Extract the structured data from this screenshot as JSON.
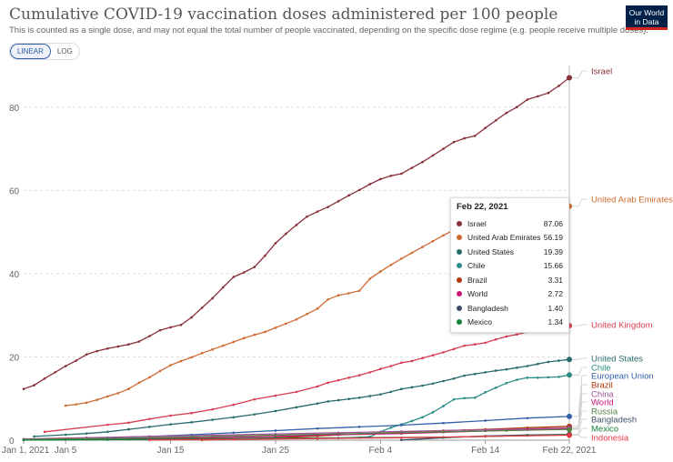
{
  "header": {
    "title": "Cumulative COVID-19 vaccination doses administered per 100 people",
    "subtitle": "This is counted as a single dose, and may not equal the total number of people vaccinated, depending on the specific dose regime (e.g. people receive multiple doses).",
    "logo_line1": "Our World",
    "logo_line2": "in Data"
  },
  "toggle": {
    "linear_label": "LINEAR",
    "log_label": "LOG",
    "active": "linear"
  },
  "tooltip": {
    "date": "Feb 22, 2021",
    "rows": [
      {
        "name": "Israel",
        "value": "87.06",
        "color": "#883039"
      },
      {
        "name": "United Arab Emirates",
        "value": "56.19",
        "color": "#cf6a31"
      },
      {
        "name": "United States",
        "value": "19.39",
        "color": "#286b6b"
      },
      {
        "name": "Chile",
        "value": "15.66",
        "color": "#2a8c85"
      },
      {
        "name": "Brazil",
        "value": "3.31",
        "color": "#b13507"
      },
      {
        "name": "World",
        "value": "2.72",
        "color": "#c9167a"
      },
      {
        "name": "Bangladesh",
        "value": "1.40",
        "color": "#3c4e66"
      },
      {
        "name": "Mexico",
        "value": "1.34",
        "color": "#18803c"
      }
    ]
  },
  "colors": {
    "Israel": "#883039",
    "United Arab Emirates": "#cf6a31",
    "United Kingdom": "#d73c50",
    "United States": "#286b6b",
    "Chile": "#2a8c85",
    "European Union": "#3360a9",
    "Brazil": "#b13507",
    "China": "#a2559c",
    "World": "#c9167a",
    "Russia": "#578145",
    "Bangladesh": "#3c4e66",
    "Mexico": "#18803c",
    "Indonesia": "#e63946"
  },
  "chart_data": {
    "type": "line",
    "xlabel": "",
    "ylabel": "",
    "ylim": [
      0,
      90
    ],
    "y_ticks": [
      0,
      20,
      40,
      60,
      80
    ],
    "x_ticks": [
      {
        "day": 0,
        "label": "Jan 1, 2021"
      },
      {
        "day": 4,
        "label": "Jan 5"
      },
      {
        "day": 14,
        "label": "Jan 15"
      },
      {
        "day": 24,
        "label": "Jan 25"
      },
      {
        "day": 34,
        "label": "Feb 4"
      },
      {
        "day": 44,
        "label": "Feb 14"
      },
      {
        "day": 52,
        "label": "Feb 22, 2021"
      }
    ],
    "x_domain": [
      0,
      52
    ],
    "grid": "horizontal",
    "legend": "right",
    "series": [
      {
        "name": "Israel",
        "label_value": 87.06,
        "points": [
          [
            0,
            12.3
          ],
          [
            1,
            13.2
          ],
          [
            2,
            14.8
          ],
          [
            3,
            16.3
          ],
          [
            4,
            17.8
          ],
          [
            5,
            19.1
          ],
          [
            6,
            20.6
          ],
          [
            7,
            21.4
          ],
          [
            8,
            22.0
          ],
          [
            9,
            22.5
          ],
          [
            10,
            23.0
          ],
          [
            11,
            23.7
          ],
          [
            12,
            25.0
          ],
          [
            13,
            26.4
          ],
          [
            14,
            27.1
          ],
          [
            15,
            27.7
          ],
          [
            16,
            29.5
          ],
          [
            17,
            31.8
          ],
          [
            18,
            34.1
          ],
          [
            19,
            36.7
          ],
          [
            20,
            39.2
          ],
          [
            21,
            40.3
          ],
          [
            22,
            41.6
          ],
          [
            23,
            44.3
          ],
          [
            24,
            47.3
          ],
          [
            25,
            49.6
          ],
          [
            26,
            51.7
          ],
          [
            27,
            53.7
          ],
          [
            28,
            54.9
          ],
          [
            29,
            56.0
          ],
          [
            30,
            57.4
          ],
          [
            31,
            58.8
          ],
          [
            32,
            60.1
          ],
          [
            33,
            61.5
          ],
          [
            34,
            62.7
          ],
          [
            35,
            63.5
          ],
          [
            36,
            64.0
          ],
          [
            37,
            65.4
          ],
          [
            38,
            66.8
          ],
          [
            39,
            68.4
          ],
          [
            40,
            70.0
          ],
          [
            41,
            71.6
          ],
          [
            42,
            72.5
          ],
          [
            43,
            73.1
          ],
          [
            44,
            75.0
          ],
          [
            45,
            76.8
          ],
          [
            46,
            78.6
          ],
          [
            47,
            80.0
          ],
          [
            48,
            81.8
          ],
          [
            49,
            82.6
          ],
          [
            50,
            83.4
          ],
          [
            51,
            85.1
          ],
          [
            52,
            87.06
          ]
        ]
      },
      {
        "name": "United Arab Emirates",
        "label_value": 56.19,
        "points": [
          [
            4,
            8.3
          ],
          [
            5,
            8.6
          ],
          [
            6,
            9.0
          ],
          [
            7,
            9.7
          ],
          [
            8,
            10.5
          ],
          [
            9,
            11.3
          ],
          [
            10,
            12.3
          ],
          [
            11,
            13.8
          ],
          [
            12,
            15.1
          ],
          [
            13,
            16.6
          ],
          [
            14,
            18.0
          ],
          [
            15,
            19.0
          ],
          [
            16,
            19.9
          ],
          [
            17,
            20.9
          ],
          [
            18,
            21.8
          ],
          [
            19,
            22.7
          ],
          [
            20,
            23.6
          ],
          [
            21,
            24.5
          ],
          [
            22,
            25.3
          ],
          [
            23,
            26.0
          ],
          [
            24,
            27.0
          ],
          [
            25,
            28.0
          ],
          [
            26,
            29.0
          ],
          [
            27,
            30.3
          ],
          [
            28,
            31.6
          ],
          [
            29,
            33.8
          ],
          [
            30,
            34.8
          ],
          [
            31,
            35.3
          ],
          [
            32,
            35.9
          ],
          [
            33,
            38.8
          ],
          [
            34,
            40.5
          ],
          [
            35,
            42.1
          ],
          [
            36,
            43.6
          ],
          [
            37,
            45.0
          ],
          [
            38,
            46.4
          ],
          [
            39,
            47.8
          ],
          [
            40,
            49.2
          ],
          [
            41,
            50.5
          ],
          [
            42,
            51.6
          ],
          [
            43,
            52.6
          ],
          [
            44,
            53.5
          ],
          [
            45,
            54.3
          ],
          [
            46,
            55.0
          ],
          [
            47,
            55.5
          ],
          [
            48,
            55.8
          ],
          [
            49,
            56.0
          ],
          [
            50,
            56.1
          ],
          [
            51,
            56.15
          ],
          [
            52,
            56.19
          ]
        ]
      },
      {
        "name": "United Kingdom",
        "label_value": 27.5,
        "points": [
          [
            2,
            2.0
          ],
          [
            8,
            3.7
          ],
          [
            10,
            4.2
          ],
          [
            12,
            5.1
          ],
          [
            14,
            5.9
          ],
          [
            16,
            6.5
          ],
          [
            18,
            7.4
          ],
          [
            20,
            8.5
          ],
          [
            22,
            9.8
          ],
          [
            24,
            10.7
          ],
          [
            26,
            11.6
          ],
          [
            28,
            12.9
          ],
          [
            29,
            13.8
          ],
          [
            30,
            14.4
          ],
          [
            31,
            15.0
          ],
          [
            32,
            15.6
          ],
          [
            33,
            16.3
          ],
          [
            34,
            17.1
          ],
          [
            35,
            17.8
          ],
          [
            36,
            18.6
          ],
          [
            37,
            19.0
          ],
          [
            38,
            19.7
          ],
          [
            39,
            20.4
          ],
          [
            40,
            21.1
          ],
          [
            41,
            21.9
          ],
          [
            42,
            22.7
          ],
          [
            43,
            23.0
          ],
          [
            44,
            23.4
          ],
          [
            45,
            24.2
          ],
          [
            46,
            24.9
          ],
          [
            47,
            25.4
          ],
          [
            48,
            26.0
          ],
          [
            49,
            26.5
          ],
          [
            50,
            26.9
          ],
          [
            51,
            27.2
          ],
          [
            52,
            27.5
          ]
        ]
      },
      {
        "name": "United States",
        "label_value": 19.39,
        "points": [
          [
            1,
            0.9
          ],
          [
            4,
            1.3
          ],
          [
            6,
            1.6
          ],
          [
            8,
            2.0
          ],
          [
            10,
            2.6
          ],
          [
            12,
            3.2
          ],
          [
            14,
            3.8
          ],
          [
            16,
            4.3
          ],
          [
            18,
            4.9
          ],
          [
            20,
            5.5
          ],
          [
            22,
            6.2
          ],
          [
            24,
            7.0
          ],
          [
            26,
            7.9
          ],
          [
            28,
            8.8
          ],
          [
            29,
            9.3
          ],
          [
            30,
            9.6
          ],
          [
            31,
            9.9
          ],
          [
            32,
            10.2
          ],
          [
            33,
            10.6
          ],
          [
            34,
            11.0
          ],
          [
            35,
            11.6
          ],
          [
            36,
            12.3
          ],
          [
            37,
            12.7
          ],
          [
            38,
            13.1
          ],
          [
            39,
            13.6
          ],
          [
            40,
            14.2
          ],
          [
            41,
            14.8
          ],
          [
            42,
            15.5
          ],
          [
            43,
            15.9
          ],
          [
            44,
            16.3
          ],
          [
            45,
            16.7
          ],
          [
            46,
            17.0
          ],
          [
            47,
            17.4
          ],
          [
            48,
            17.8
          ],
          [
            49,
            18.3
          ],
          [
            50,
            18.8
          ],
          [
            51,
            19.1
          ],
          [
            52,
            19.39
          ]
        ]
      },
      {
        "name": "Chile",
        "label_value": 15.66,
        "points": [
          [
            0,
            0.05
          ],
          [
            10,
            0.15
          ],
          [
            20,
            0.3
          ],
          [
            30,
            0.5
          ],
          [
            33,
            0.8
          ],
          [
            34,
            2.0
          ],
          [
            35,
            3.0
          ],
          [
            36,
            3.8
          ],
          [
            37,
            4.6
          ],
          [
            38,
            5.5
          ],
          [
            39,
            6.7
          ],
          [
            40,
            8.2
          ],
          [
            41,
            9.8
          ],
          [
            42,
            10.1
          ],
          [
            43,
            10.2
          ],
          [
            44,
            11.5
          ],
          [
            45,
            12.6
          ],
          [
            46,
            13.7
          ],
          [
            47,
            14.5
          ],
          [
            48,
            15.0
          ],
          [
            49,
            15.0
          ],
          [
            50,
            15.1
          ],
          [
            51,
            15.2
          ],
          [
            52,
            15.66
          ]
        ]
      },
      {
        "name": "European Union",
        "label_value": 5.7,
        "points": [
          [
            0,
            0.1
          ],
          [
            4,
            0.3
          ],
          [
            8,
            0.6
          ],
          [
            12,
            0.9
          ],
          [
            16,
            1.3
          ],
          [
            20,
            1.8
          ],
          [
            24,
            2.3
          ],
          [
            28,
            2.8
          ],
          [
            32,
            3.2
          ],
          [
            36,
            3.6
          ],
          [
            40,
            4.1
          ],
          [
            44,
            4.7
          ],
          [
            48,
            5.3
          ],
          [
            52,
            5.7
          ]
        ]
      },
      {
        "name": "Brazil",
        "label_value": 3.31,
        "points": [
          [
            17,
            0.05
          ],
          [
            20,
            0.3
          ],
          [
            24,
            0.6
          ],
          [
            28,
            1.0
          ],
          [
            32,
            1.5
          ],
          [
            36,
            1.9
          ],
          [
            40,
            2.3
          ],
          [
            44,
            2.6
          ],
          [
            48,
            3.0
          ],
          [
            52,
            3.31
          ]
        ]
      },
      {
        "name": "China",
        "label_value": 2.9,
        "points": [
          [
            0,
            0.3
          ],
          [
            6,
            0.6
          ],
          [
            12,
            0.9
          ],
          [
            18,
            1.2
          ],
          [
            24,
            1.5
          ],
          [
            30,
            1.8
          ],
          [
            36,
            2.1
          ],
          [
            42,
            2.4
          ],
          [
            48,
            2.7
          ],
          [
            52,
            2.9
          ]
        ]
      },
      {
        "name": "World",
        "label_value": 2.72,
        "points": [
          [
            0,
            0.1
          ],
          [
            6,
            0.2
          ],
          [
            12,
            0.4
          ],
          [
            18,
            0.6
          ],
          [
            24,
            0.9
          ],
          [
            30,
            1.3
          ],
          [
            36,
            1.6
          ],
          [
            40,
            1.9
          ],
          [
            44,
            2.2
          ],
          [
            48,
            2.5
          ],
          [
            52,
            2.72
          ]
        ]
      },
      {
        "name": "Russia",
        "label_value": 2.6,
        "points": [
          [
            0,
            0.2
          ],
          [
            8,
            0.4
          ],
          [
            16,
            0.8
          ],
          [
            24,
            1.2
          ],
          [
            32,
            1.6
          ],
          [
            40,
            2.0
          ],
          [
            46,
            2.3
          ],
          [
            52,
            2.6
          ]
        ]
      },
      {
        "name": "Bangladesh",
        "label_value": 1.4,
        "points": [
          [
            36,
            0.05
          ],
          [
            40,
            0.6
          ],
          [
            44,
            1.0
          ],
          [
            48,
            1.25
          ],
          [
            52,
            1.4
          ]
        ]
      },
      {
        "name": "Mexico",
        "label_value": 1.34,
        "points": [
          [
            0,
            0.02
          ],
          [
            8,
            0.1
          ],
          [
            16,
            0.3
          ],
          [
            24,
            0.5
          ],
          [
            32,
            0.6
          ],
          [
            40,
            0.7
          ],
          [
            44,
            0.9
          ],
          [
            48,
            1.1
          ],
          [
            52,
            1.34
          ]
        ]
      },
      {
        "name": "Indonesia",
        "label_value": 1.2,
        "points": [
          [
            12,
            0.02
          ],
          [
            20,
            0.2
          ],
          [
            28,
            0.4
          ],
          [
            36,
            0.6
          ],
          [
            44,
            0.9
          ],
          [
            52,
            1.2
          ]
        ]
      }
    ]
  }
}
